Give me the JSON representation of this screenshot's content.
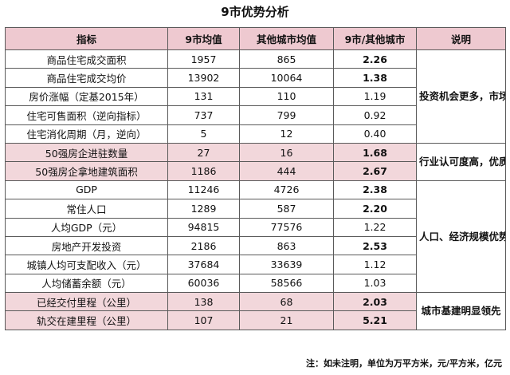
{
  "title": "9市优势分析",
  "headers": [
    "指标",
    "9市均值",
    "其他城市均值",
    "9市/其他城市",
    "说明"
  ],
  "rows": [
    {
      "indicator": "商品住宅成交面积",
      "nine": "1957",
      "other": "865",
      "ratio": "2.26",
      "bold": true,
      "pink": false
    },
    {
      "indicator": "商品住宅成交均价",
      "nine": "13902",
      "other": "10064",
      "ratio": "1.38",
      "bold": true,
      "pink": false
    },
    {
      "indicator": "房价涨幅（定基2015年）",
      "nine": "131",
      "other": "110",
      "ratio": "1.19",
      "bold": false,
      "pink": false
    },
    {
      "indicator": "住宅可售面积（逆向指标）",
      "nine": "737",
      "other": "799",
      "ratio": "0.92",
      "bold": false,
      "pink": false
    },
    {
      "indicator": "住宅消化周期（月，逆向）",
      "nine": "5",
      "other": "12",
      "ratio": "0.40",
      "bold": false,
      "pink": false
    },
    {
      "indicator": "50强房企进驻数量",
      "nine": "27",
      "other": "16",
      "ratio": "1.68",
      "bold": true,
      "pink": true
    },
    {
      "indicator": "50强房企拿地建筑面积",
      "nine": "1186",
      "other": "444",
      "ratio": "2.67",
      "bold": true,
      "pink": true
    },
    {
      "indicator": "GDP",
      "nine": "11246",
      "other": "4726",
      "ratio": "2.38",
      "bold": true,
      "pink": false
    },
    {
      "indicator": "常住人口",
      "nine": "1289",
      "other": "587",
      "ratio": "2.20",
      "bold": true,
      "pink": false
    },
    {
      "indicator": "人均GDP（元）",
      "nine": "94815",
      "other": "77576",
      "ratio": "1.22",
      "bold": false,
      "pink": false
    },
    {
      "indicator": "房地产开发投资",
      "nine": "2186",
      "other": "863",
      "ratio": "2.53",
      "bold": true,
      "pink": false
    },
    {
      "indicator": "城镇人均可支配收入（元）",
      "nine": "37684",
      "other": "33639",
      "ratio": "1.12",
      "bold": false,
      "pink": false
    },
    {
      "indicator": "人均储蓄余额（元）",
      "nine": "60036",
      "other": "58566",
      "ratio": "1.03",
      "bold": false,
      "pink": false
    },
    {
      "indicator": "已经交付里程（公里）",
      "nine": "138",
      "other": "68",
      "ratio": "2.03",
      "bold": true,
      "pink": true
    },
    {
      "indicator": "轨交在建里程（公里）",
      "nine": "107",
      "other": "21",
      "ratio": "5.21",
      "bold": true,
      "pink": true
    }
  ],
  "notes": [
    {
      "text": "投资机会更多，市场风险更小",
      "start": 0,
      "span": 5
    },
    {
      "text": "行业认可度高，优质产品更多",
      "start": 5,
      "span": 2
    },
    {
      "text": "人口、经济规模优势显著，二手房市场发展潜力更大",
      "start": 7,
      "span": 6
    },
    {
      "text": "城市基建明显领先",
      "start": 13,
      "span": 2
    }
  ],
  "footnote": "注：如未注明，单位为万平方米，元/平方米，亿元"
}
